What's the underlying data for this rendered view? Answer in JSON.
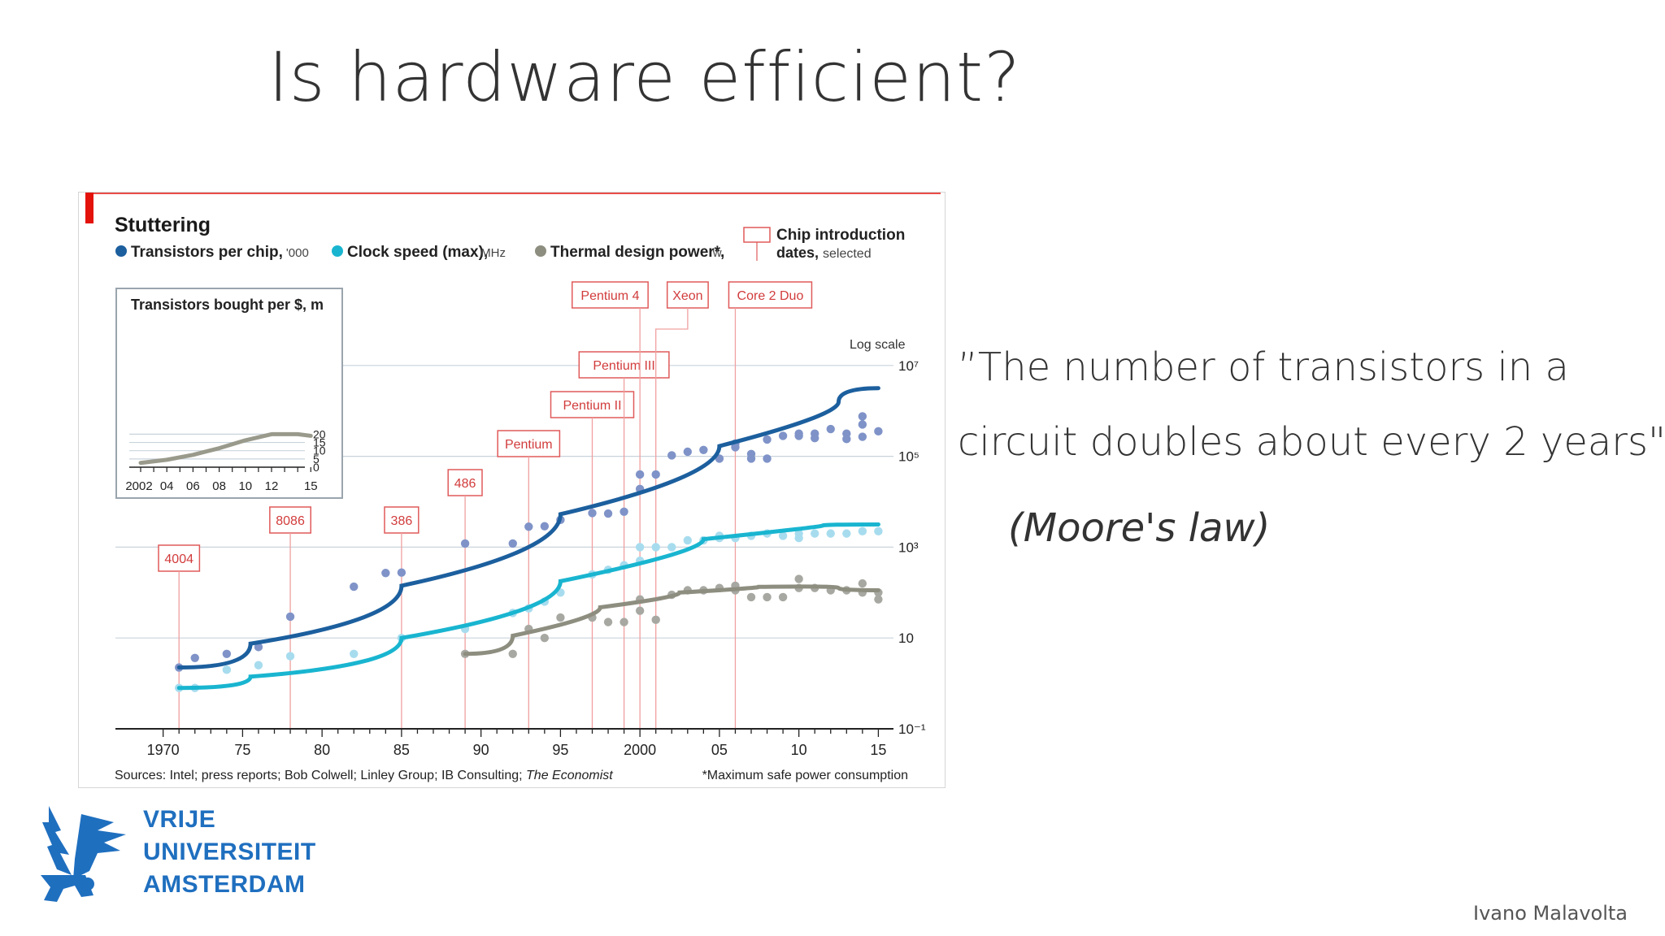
{
  "slide": {
    "title": "Is hardware efficient?",
    "quote_line1": "”The number of transistors in a",
    "quote_line2": "circuit doubles about every 2 years\"",
    "quote_attribution": "(Moore's law)",
    "author": "Ivano Malavolta",
    "logo": {
      "line1": "VRIJE",
      "line2": "UNIVERSITEIT",
      "line3": "AMSTERDAM",
      "color": "#1f6fbf"
    }
  },
  "chart_data": [
    {
      "type": "scatter",
      "title": "Stuttering",
      "scale": "log",
      "scale_label": "Log scale",
      "accent_color": "#e3120b",
      "x_ticks": [
        "1970",
        "75",
        "80",
        "85",
        "90",
        "95",
        "2000",
        "05",
        "10",
        "15"
      ],
      "x_tick_values": [
        1970,
        1975,
        1980,
        1985,
        1990,
        1995,
        2000,
        2005,
        2010,
        2015
      ],
      "y_ticks": [
        "10⁻¹",
        "10",
        "10³",
        "10⁵",
        "10⁷"
      ],
      "y_tick_values": [
        0.1,
        10,
        1000,
        100000,
        10000000
      ],
      "xlim": [
        1967,
        2016
      ],
      "ylim_log10": [
        -1,
        7.5
      ],
      "legend": [
        {
          "label": "Transistors per chip,",
          "unit": "'000",
          "color": "#1c5f9e"
        },
        {
          "label": "Clock speed (max),",
          "unit": "MHz",
          "color": "#19b5d0"
        },
        {
          "label": "Thermal design power*,",
          "unit": "w",
          "color": "#8e8e80"
        },
        {
          "label": "Chip introduction",
          "sublabel": "dates, selected",
          "color": "#e05a5a"
        }
      ],
      "series": [
        {
          "name": "Transistors per chip, '000",
          "color": "#1c5f9e",
          "point_color": "#7f93c8",
          "trend": [
            [
              1971,
              0.35
            ],
            [
              1980,
              1.4
            ],
            [
              1990,
              2.9
            ],
            [
              2000,
              4.55
            ],
            [
              2010,
              5.9
            ],
            [
              2015,
              6.5
            ]
          ],
          "points": [
            [
              1971,
              0.35
            ],
            [
              1972,
              0.56
            ],
            [
              1974,
              0.65
            ],
            [
              1976,
              0.8
            ],
            [
              1978,
              1.47
            ],
            [
              1982,
              2.13
            ],
            [
              1984,
              2.43
            ],
            [
              1985,
              2.44
            ],
            [
              1989,
              3.08
            ],
            [
              1992,
              3.08
            ],
            [
              1993,
              3.45
            ],
            [
              1994,
              3.46
            ],
            [
              1995,
              3.6
            ],
            [
              1997,
              3.75
            ],
            [
              1998,
              3.74
            ],
            [
              1999,
              3.78
            ],
            [
              2000,
              4.6
            ],
            [
              2000,
              4.28
            ],
            [
              2001,
              4.6
            ],
            [
              2002,
              5.02
            ],
            [
              2003,
              5.1
            ],
            [
              2004,
              5.14
            ],
            [
              2005,
              4.95
            ],
            [
              2006,
              5.28
            ],
            [
              2006,
              5.2
            ],
            [
              2007,
              4.95
            ],
            [
              2007,
              5.05
            ],
            [
              2008,
              4.95
            ],
            [
              2008,
              5.37
            ],
            [
              2009,
              5.45
            ],
            [
              2010,
              5.45
            ],
            [
              2010,
              5.5
            ],
            [
              2011,
              5.5
            ],
            [
              2011,
              5.4
            ],
            [
              2012,
              5.6
            ],
            [
              2013,
              5.38
            ],
            [
              2013,
              5.5
            ],
            [
              2014,
              5.7
            ],
            [
              2014,
              5.88
            ],
            [
              2014,
              5.43
            ],
            [
              2015,
              5.55
            ]
          ]
        },
        {
          "name": "Clock speed (max), MHz",
          "color": "#19b5d0",
          "point_color": "#a7dcee",
          "trend": [
            [
              1971,
              -0.1
            ],
            [
              1980,
              0.4
            ],
            [
              1990,
              1.6
            ],
            [
              2000,
              2.9
            ],
            [
              2008,
              3.45
            ],
            [
              2015,
              3.5
            ]
          ],
          "points": [
            [
              1971,
              -0.1
            ],
            [
              1972,
              -0.1
            ],
            [
              1974,
              0.3
            ],
            [
              1976,
              0.4
            ],
            [
              1978,
              0.6
            ],
            [
              1982,
              0.65
            ],
            [
              1985,
              1.0
            ],
            [
              1989,
              1.2
            ],
            [
              1992,
              1.55
            ],
            [
              1993,
              1.65
            ],
            [
              1994,
              1.8
            ],
            [
              1995,
              2.0
            ],
            [
              1997,
              2.4
            ],
            [
              1998,
              2.5
            ],
            [
              1999,
              2.6
            ],
            [
              2000,
              2.7
            ],
            [
              2000,
              3.0
            ],
            [
              2001,
              3.0
            ],
            [
              2002,
              3.0
            ],
            [
              2003,
              3.15
            ],
            [
              2004,
              3.15
            ],
            [
              2005,
              3.2
            ],
            [
              2005,
              3.25
            ],
            [
              2006,
              3.2
            ],
            [
              2007,
              3.25
            ],
            [
              2008,
              3.3
            ],
            [
              2009,
              3.25
            ],
            [
              2010,
              3.3
            ],
            [
              2010,
              3.2
            ],
            [
              2011,
              3.3
            ],
            [
              2012,
              3.3
            ],
            [
              2013,
              3.3
            ],
            [
              2014,
              3.35
            ],
            [
              2015,
              3.35
            ]
          ]
        },
        {
          "name": "Thermal design power*, w",
          "color": "#8e8e80",
          "point_color": "#a8a8a2",
          "trend": [
            [
              1989,
              0.65
            ],
            [
              1995,
              1.45
            ],
            [
              2000,
              1.9
            ],
            [
              2005,
              2.1
            ],
            [
              2010,
              2.15
            ],
            [
              2015,
              2.05
            ]
          ],
          "points": [
            [
              1989,
              0.65
            ],
            [
              1992,
              0.65
            ],
            [
              1993,
              1.2
            ],
            [
              1994,
              1.0
            ],
            [
              1995,
              1.45
            ],
            [
              1997,
              1.45
            ],
            [
              1998,
              1.35
            ],
            [
              1999,
              1.35
            ],
            [
              2000,
              1.6
            ],
            [
              2000,
              1.85
            ],
            [
              2001,
              1.4
            ],
            [
              2002,
              1.95
            ],
            [
              2003,
              2.05
            ],
            [
              2004,
              2.05
            ],
            [
              2005,
              2.1
            ],
            [
              2006,
              2.05
            ],
            [
              2006,
              2.15
            ],
            [
              2007,
              1.9
            ],
            [
              2008,
              1.9
            ],
            [
              2009,
              1.9
            ],
            [
              2010,
              2.1
            ],
            [
              2010,
              2.3
            ],
            [
              2011,
              2.1
            ],
            [
              2012,
              2.05
            ],
            [
              2013,
              2.05
            ],
            [
              2014,
              2.2
            ],
            [
              2014,
              2.0
            ],
            [
              2015,
              1.85
            ],
            [
              2015,
              2.0
            ]
          ]
        }
      ],
      "annotations": [
        {
          "label": "4004",
          "year": 1971,
          "level": 0
        },
        {
          "label": "8086",
          "year": 1978,
          "level": 1
        },
        {
          "label": "386",
          "year": 1985,
          "level": 1
        },
        {
          "label": "486",
          "year": 1989,
          "level": 2
        },
        {
          "label": "Pentium",
          "year": 1993,
          "level": 3
        },
        {
          "label": "Pentium II",
          "year": 1997,
          "level": 4
        },
        {
          "label": "Pentium III",
          "year": 1999,
          "level": 5
        },
        {
          "label": "Pentium 4",
          "year": 2000,
          "level": 6
        },
        {
          "label": "Xeon",
          "year": 2001,
          "level": 6
        },
        {
          "label": "Core 2 Duo",
          "year": 2006,
          "level": 6
        }
      ],
      "source": "Sources: Intel; press reports; Bob Colwell; Linley Group; IB Consulting;",
      "source_italic": "The Economist",
      "footnote": "*Maximum safe power consumption"
    },
    {
      "type": "line",
      "title": "Transistors bought per $, m",
      "x_ticks": [
        "2002",
        "04",
        "06",
        "08",
        "10",
        "12",
        "15"
      ],
      "x_tick_values": [
        2002,
        2004,
        2006,
        2008,
        2010,
        2012,
        2015
      ],
      "y_ticks": [
        "0",
        "5",
        "10",
        "15",
        "20"
      ],
      "ylim": [
        0,
        20
      ],
      "xlim": [
        2002,
        2015
      ],
      "series": [
        {
          "color": "#9a9a8c",
          "x": [
            2002,
            2004,
            2006,
            2008,
            2010,
            2012,
            2014,
            2015
          ],
          "values": [
            2.6,
            4.5,
            7.5,
            11.5,
            16.3,
            20,
            20,
            19
          ]
        }
      ]
    }
  ]
}
